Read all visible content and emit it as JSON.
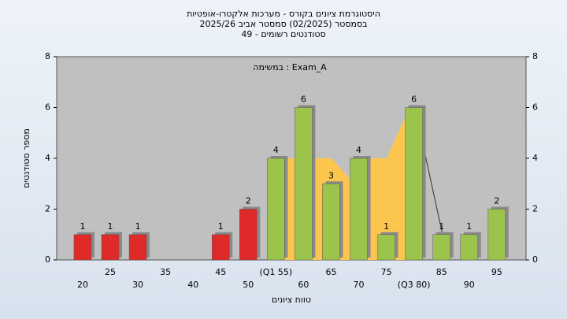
{
  "chart_data": {
    "type": "bar",
    "title": "היסטוגרמת ציונים בקורס - מערכות אלקטרו-אופטיות",
    "subtitle": "בסמסטר  (02/2025)  סמסטר אביב 2025/26",
    "subtitle2": "סטודנטים רשומים - 49",
    "annotation": "במשימה : Exam_A",
    "x_label": "טווח ציונים",
    "y_label": "מספר סטודנטים",
    "categories": [
      "20",
      "25",
      "30",
      "35",
      "40",
      "45",
      "50",
      "(Q1 55)",
      "60",
      "65",
      "70",
      "75",
      "(Q3 80)",
      "85",
      "90",
      "95"
    ],
    "values": [
      1,
      1,
      1,
      0,
      0,
      1,
      2,
      4,
      6,
      3,
      4,
      1,
      6,
      1,
      1,
      2
    ],
    "colors": [
      "#e02a2a",
      "#e02a2a",
      "#e02a2a",
      "#e02a2a",
      "#e02a2a",
      "#e02a2a",
      "#e02a2a",
      "#9cc44c",
      "#9cc44c",
      "#9cc44c",
      "#9cc44c",
      "#9cc44c",
      "#9cc44c",
      "#9cc44c",
      "#9cc44c",
      "#9cc44c"
    ],
    "ylim": [
      0,
      8
    ],
    "yticks": [
      0,
      2,
      4,
      6,
      8
    ],
    "y2lim": [
      0,
      8
    ],
    "y2ticks": [
      0,
      2,
      4,
      6,
      8
    ],
    "grid": false
  }
}
